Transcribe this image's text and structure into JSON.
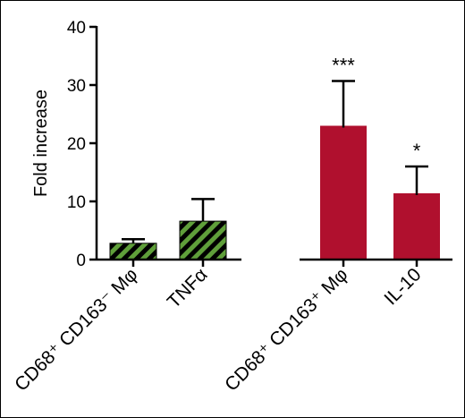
{
  "chart_data": {
    "type": "bar",
    "title": "",
    "xlabel": "",
    "ylabel": "Fold increase",
    "ylim": [
      0,
      40
    ],
    "yticks": [
      "0",
      "10",
      "20",
      "30",
      "40"
    ],
    "grid": false,
    "legend": "none",
    "categories": [
      "CD68⁺ CD163⁻ Mφ",
      "TNFα",
      "CD68⁺ CD163⁺ Mφ",
      "IL-10"
    ],
    "values": [
      2.8,
      6.6,
      23.0,
      11.4
    ],
    "error_upper": [
      0.7,
      3.8,
      7.7,
      4.6
    ],
    "significance": [
      "",
      "",
      "***",
      "*"
    ],
    "colors": {
      "green": "#5f9f3a",
      "stripe": "#000000",
      "red": "#b0102e"
    },
    "bar_styles": [
      "green-hatched",
      "green-hatched",
      "red-solid",
      "red-solid"
    ]
  }
}
